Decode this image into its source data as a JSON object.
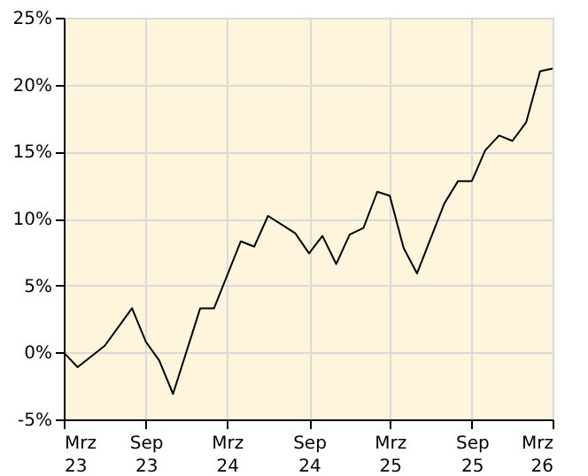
{
  "chart_data": {
    "type": "line",
    "x": [
      "2023-03",
      "2023-04",
      "2023-06",
      "2023-08",
      "2023-09",
      "2023-10",
      "2023-11",
      "2024-01",
      "2024-02",
      "2024-04",
      "2024-05",
      "2024-06",
      "2024-08",
      "2024-09",
      "2024-10",
      "2024-11",
      "2024-12",
      "2025-01",
      "2025-02",
      "2025-03",
      "2025-04",
      "2025-05",
      "2025-07",
      "2025-08",
      "2025-09",
      "2025-10",
      "2025-11",
      "2025-12",
      "2026-01",
      "2026-02",
      "2026-03"
    ],
    "series": [
      {
        "color": "#000000",
        "values": [
          0,
          -1.1,
          0.5,
          3.3,
          0.8,
          -0.6,
          -3.1,
          3.3,
          3.3,
          8.3,
          7.9,
          10.2,
          8.9,
          7.4,
          8.7,
          6.6,
          8.8,
          9.3,
          12.0,
          11.7,
          7.8,
          5.9,
          11.1,
          12.8,
          12.8,
          15.1,
          16.2,
          15.8,
          17.2,
          21.0,
          21.2
        ]
      }
    ],
    "xlim": [
      "2023-03",
      "2026-03"
    ],
    "xticks": [
      {
        "value": "2023-03",
        "label": "Mrz 23"
      },
      {
        "value": "2023-09",
        "label": "Sep 23"
      },
      {
        "value": "2024-03",
        "label": "Mrz 24"
      },
      {
        "value": "2024-09",
        "label": "Sep 24"
      },
      {
        "value": "2025-03",
        "label": "Mrz 25"
      },
      {
        "value": "2025-09",
        "label": "Sep 25"
      },
      {
        "value": "2026-03",
        "label": "Mrz 26"
      }
    ],
    "ylim": [
      -5,
      25
    ],
    "yticks": [
      {
        "value": -5,
        "label": "-5%"
      },
      {
        "value": 0,
        "label": "0%"
      },
      {
        "value": 5,
        "label": "5%"
      },
      {
        "value": 10,
        "label": "10%"
      },
      {
        "value": 15,
        "label": "15%"
      },
      {
        "value": 20,
        "label": "20%"
      },
      {
        "value": 25,
        "label": "25%"
      }
    ],
    "grid": true,
    "marker": "none",
    "line_style": "solid"
  }
}
